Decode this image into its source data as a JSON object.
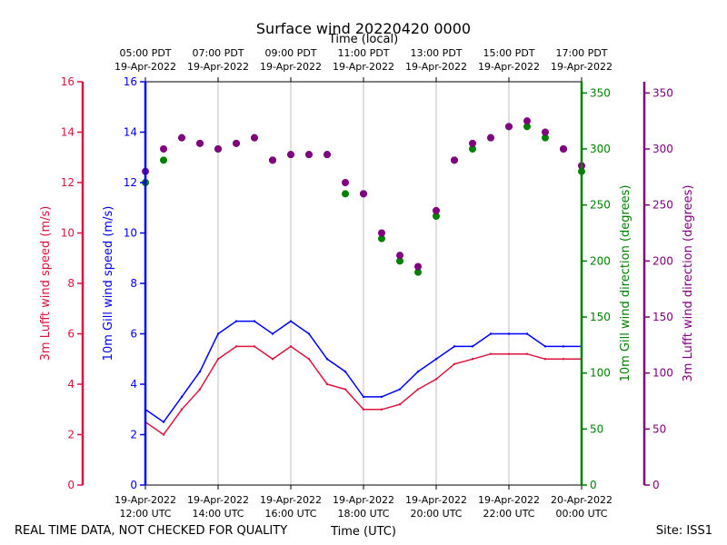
{
  "chart_data": {
    "type": "line+scatter",
    "title": "Surface wind 20220420 0000",
    "top_axis_label": "Time (local)",
    "xlabel": "Time (UTC)",
    "footer_left": "REAL TIME DATA, NOT CHECKED FOR QUALITY",
    "footer_right": "Site: ISS1",
    "x_range_hours_utc": [
      12,
      24
    ],
    "x_ticks": [
      {
        "h": 12,
        "utc_date": "19-Apr-2022",
        "utc_time": "12:00 UTC"
      },
      {
        "h": 14,
        "utc_date": "19-Apr-2022",
        "utc_time": "14:00 UTC"
      },
      {
        "h": 16,
        "utc_date": "19-Apr-2022",
        "utc_time": "16:00 UTC"
      },
      {
        "h": 18,
        "utc_date": "19-Apr-2022",
        "utc_time": "18:00 UTC"
      },
      {
        "h": 20,
        "utc_date": "19-Apr-2022",
        "utc_time": "20:00 UTC"
      },
      {
        "h": 22,
        "utc_date": "19-Apr-2022",
        "utc_time": "22:00 UTC"
      },
      {
        "h": 24,
        "utc_date": "20-Apr-2022",
        "utc_time": "00:00 UTC"
      }
    ],
    "top_ticks": [
      {
        "h": 12,
        "local_time": "05:00 PDT",
        "local_date": "19-Apr-2022"
      },
      {
        "h": 14,
        "local_time": "07:00 PDT",
        "local_date": "19-Apr-2022"
      },
      {
        "h": 16,
        "local_time": "09:00 PDT",
        "local_date": "19-Apr-2022"
      },
      {
        "h": 18,
        "local_time": "11:00 PDT",
        "local_date": "19-Apr-2022"
      },
      {
        "h": 20,
        "local_time": "13:00 PDT",
        "local_date": "19-Apr-2022"
      },
      {
        "h": 22,
        "local_time": "15:00 PDT",
        "local_date": "19-Apr-2022"
      },
      {
        "h": 24,
        "local_time": "17:00 PDT",
        "local_date": "19-Apr-2022"
      }
    ],
    "speed_axes": [
      {
        "label": "3m Lufft wind speed (m/s)",
        "color": "#dc143c",
        "ylim": [
          0,
          16
        ],
        "ticks": [
          "0",
          "2",
          "4",
          "6",
          "8",
          "10",
          "12",
          "14",
          "16"
        ]
      },
      {
        "label": "10m Gill wind speed (m/s)",
        "color": "#0000ff",
        "ylim": [
          0,
          16
        ],
        "ticks": [
          "0",
          "2",
          "4",
          "6",
          "8",
          "10",
          "12",
          "14",
          "16"
        ]
      }
    ],
    "direction_axes": [
      {
        "label": "10m Gill wind direction (degrees)",
        "color": "#008000",
        "ylim": [
          0,
          360
        ],
        "ticks": [
          "0",
          "50",
          "100",
          "150",
          "200",
          "250",
          "300",
          "350"
        ]
      },
      {
        "label": "3m Lufft wind direction (degrees)",
        "color": "#800080",
        "ylim": [
          0,
          360
        ],
        "ticks": [
          "0",
          "50",
          "100",
          "150",
          "200",
          "250",
          "300",
          "350"
        ]
      }
    ],
    "series": [
      {
        "name": "10m Gill wind speed",
        "axis": "speed",
        "color": "#0000ff",
        "kind": "line",
        "x": [
          12.0,
          12.5,
          13.0,
          13.5,
          14.0,
          14.5,
          15.0,
          15.5,
          16.0,
          16.5,
          17.0,
          17.5,
          18.0,
          18.5,
          19.0,
          19.5,
          20.0,
          20.5,
          21.0,
          21.5,
          22.0,
          22.5,
          23.0,
          23.5,
          24.0
        ],
        "y": [
          3.0,
          2.5,
          3.5,
          4.5,
          6.0,
          6.5,
          6.5,
          6.0,
          6.5,
          6.0,
          5.0,
          4.5,
          3.5,
          3.5,
          3.8,
          4.5,
          5.0,
          5.5,
          5.5,
          6.0,
          6.0,
          6.0,
          5.5,
          5.5,
          5.5
        ]
      },
      {
        "name": "3m Lufft wind speed",
        "axis": "speed",
        "color": "#dc143c",
        "kind": "line",
        "x": [
          12.0,
          12.5,
          13.0,
          13.5,
          14.0,
          14.5,
          15.0,
          15.5,
          16.0,
          16.5,
          17.0,
          17.5,
          18.0,
          18.5,
          19.0,
          19.5,
          20.0,
          20.5,
          21.0,
          21.5,
          22.0,
          22.5,
          23.0,
          23.5,
          24.0
        ],
        "y": [
          2.5,
          2.0,
          3.0,
          3.8,
          5.0,
          5.5,
          5.5,
          5.0,
          5.5,
          5.0,
          4.0,
          3.8,
          3.0,
          3.0,
          3.2,
          3.8,
          4.2,
          4.8,
          5.0,
          5.2,
          5.2,
          5.2,
          5.0,
          5.0,
          5.0
        ]
      },
      {
        "name": "10m Gill wind direction",
        "axis": "direction",
        "color": "#008000",
        "kind": "points",
        "x": [
          12.0,
          12.5,
          13.0,
          13.5,
          14.0,
          14.5,
          15.0,
          15.5,
          16.0,
          16.5,
          17.0,
          17.5,
          18.0,
          18.5,
          19.0,
          19.5,
          20.0,
          20.5,
          21.0,
          21.5,
          22.0,
          22.5,
          23.0,
          23.5,
          24.0
        ],
        "y": [
          270,
          290,
          310,
          305,
          300,
          305,
          310,
          290,
          295,
          295,
          295,
          260,
          260,
          220,
          200,
          190,
          240,
          290,
          300,
          310,
          320,
          320,
          310,
          300,
          280
        ]
      },
      {
        "name": "3m Lufft wind direction",
        "axis": "direction",
        "color": "#800080",
        "kind": "points",
        "x": [
          12.0,
          12.5,
          13.0,
          13.5,
          14.0,
          14.5,
          15.0,
          15.5,
          16.0,
          16.5,
          17.0,
          17.5,
          18.0,
          18.5,
          19.0,
          19.5,
          20.0,
          20.5,
          21.0,
          21.5,
          22.0,
          22.5,
          23.0,
          23.5,
          24.0
        ],
        "y": [
          280,
          300,
          310,
          305,
          300,
          305,
          310,
          290,
          295,
          295,
          295,
          270,
          260,
          225,
          205,
          195,
          245,
          290,
          305,
          310,
          320,
          325,
          315,
          300,
          285
        ]
      }
    ]
  }
}
